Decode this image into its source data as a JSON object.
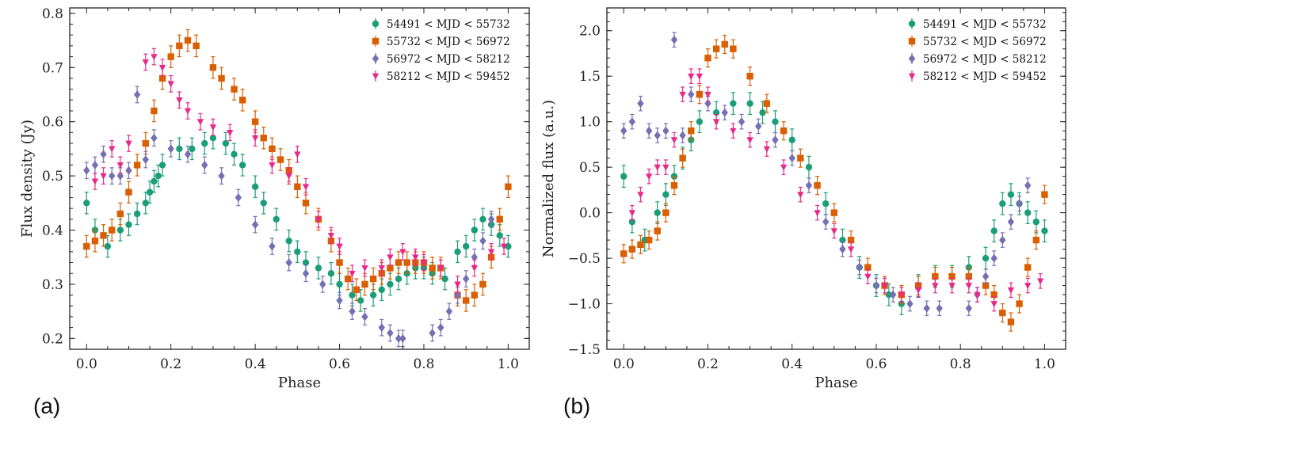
{
  "chart_data": [
    {
      "type": "scatter",
      "panel_label": "(a)",
      "xlabel": "Phase",
      "ylabel": "Flux density (Jy)",
      "xlim": [
        -0.04,
        1.05
      ],
      "ylim": [
        0.18,
        0.81
      ],
      "xticks": [
        "0.0",
        "0.2",
        "0.4",
        "0.6",
        "0.8",
        "1.0"
      ],
      "xtick_values": [
        0.0,
        0.2,
        0.4,
        0.6,
        0.8,
        1.0
      ],
      "yticks": [
        "0.2",
        "0.3",
        "0.4",
        "0.5",
        "0.6",
        "0.7",
        "0.8"
      ],
      "ytick_values": [
        0.2,
        0.3,
        0.4,
        0.5,
        0.6,
        0.7,
        0.8
      ],
      "legend_position": "top-right",
      "series": [
        {
          "name": "54491 < MJD < 55732",
          "color": "#1b9e77",
          "marker": "circle",
          "x": [
            0.0,
            0.02,
            0.05,
            0.08,
            0.1,
            0.12,
            0.14,
            0.15,
            0.16,
            0.17,
            0.18,
            0.22,
            0.25,
            0.28,
            0.3,
            0.33,
            0.35,
            0.37,
            0.4,
            0.42,
            0.45,
            0.48,
            0.5,
            0.52,
            0.55,
            0.58,
            0.6,
            0.63,
            0.65,
            0.68,
            0.7,
            0.72,
            0.74,
            0.76,
            0.78,
            0.8,
            0.82,
            0.85,
            0.88,
            0.9,
            0.92,
            0.94,
            0.96,
            0.98,
            1.0
          ],
          "y": [
            0.45,
            0.4,
            0.37,
            0.4,
            0.41,
            0.43,
            0.45,
            0.47,
            0.49,
            0.5,
            0.52,
            0.55,
            0.55,
            0.56,
            0.57,
            0.56,
            0.54,
            0.52,
            0.48,
            0.45,
            0.42,
            0.38,
            0.36,
            0.34,
            0.33,
            0.32,
            0.3,
            0.28,
            0.27,
            0.28,
            0.29,
            0.3,
            0.31,
            0.32,
            0.33,
            0.33,
            0.32,
            0.31,
            0.36,
            0.37,
            0.4,
            0.42,
            0.41,
            0.39,
            0.37
          ],
          "yerr": 0.02
        },
        {
          "name": "55732 < MJD < 56972",
          "color": "#d95f02",
          "marker": "square",
          "x": [
            0.0,
            0.02,
            0.04,
            0.06,
            0.08,
            0.1,
            0.12,
            0.14,
            0.16,
            0.18,
            0.2,
            0.22,
            0.24,
            0.26,
            0.3,
            0.32,
            0.35,
            0.37,
            0.4,
            0.42,
            0.44,
            0.46,
            0.48,
            0.5,
            0.52,
            0.55,
            0.58,
            0.6,
            0.62,
            0.64,
            0.66,
            0.68,
            0.7,
            0.72,
            0.74,
            0.76,
            0.78,
            0.8,
            0.82,
            0.84,
            0.88,
            0.9,
            0.92,
            0.94,
            0.96,
            0.98,
            1.0
          ],
          "y": [
            0.37,
            0.38,
            0.39,
            0.4,
            0.43,
            0.47,
            0.52,
            0.56,
            0.62,
            0.68,
            0.72,
            0.74,
            0.75,
            0.74,
            0.7,
            0.68,
            0.66,
            0.64,
            0.6,
            0.57,
            0.55,
            0.53,
            0.51,
            0.48,
            0.45,
            0.42,
            0.38,
            0.34,
            0.31,
            0.29,
            0.3,
            0.31,
            0.32,
            0.33,
            0.34,
            0.34,
            0.34,
            0.34,
            0.33,
            0.33,
            0.28,
            0.27,
            0.28,
            0.3,
            0.35,
            0.42,
            0.48
          ],
          "yerr": 0.02
        },
        {
          "name": "56972 < MJD < 58212",
          "color": "#7570b3",
          "marker": "diamond",
          "x": [
            0.0,
            0.02,
            0.04,
            0.06,
            0.08,
            0.1,
            0.12,
            0.14,
            0.16,
            0.2,
            0.24,
            0.28,
            0.32,
            0.36,
            0.4,
            0.44,
            0.48,
            0.52,
            0.56,
            0.6,
            0.63,
            0.66,
            0.7,
            0.72,
            0.74,
            0.75,
            0.82,
            0.84,
            0.86,
            0.88,
            0.9,
            0.92,
            0.94,
            0.96
          ],
          "y": [
            0.51,
            0.52,
            0.54,
            0.5,
            0.5,
            0.51,
            0.65,
            0.53,
            0.57,
            0.55,
            0.54,
            0.52,
            0.5,
            0.46,
            0.41,
            0.37,
            0.34,
            0.32,
            0.3,
            0.27,
            0.25,
            0.24,
            0.22,
            0.21,
            0.2,
            0.2,
            0.21,
            0.22,
            0.25,
            0.28,
            0.31,
            0.35,
            0.38,
            0.42
          ],
          "yerr": 0.015
        },
        {
          "name": "58212 < MJD < 59452",
          "color": "#e7298a",
          "marker": "triangle-down",
          "x": [
            0.02,
            0.04,
            0.06,
            0.08,
            0.1,
            0.14,
            0.16,
            0.18,
            0.2,
            0.22,
            0.24,
            0.27,
            0.3,
            0.34,
            0.4,
            0.44,
            0.48,
            0.5,
            0.52,
            0.55,
            0.58,
            0.6,
            0.63,
            0.66,
            0.7,
            0.72,
            0.75,
            0.78,
            0.8,
            0.84,
            0.88,
            0.92,
            0.96,
            0.99
          ],
          "y": [
            0.49,
            0.5,
            0.55,
            0.52,
            0.56,
            0.71,
            0.72,
            0.7,
            0.67,
            0.64,
            0.62,
            0.6,
            0.59,
            0.58,
            0.57,
            0.52,
            0.5,
            0.54,
            0.48,
            0.42,
            0.39,
            0.37,
            0.32,
            0.33,
            0.33,
            0.35,
            0.36,
            0.35,
            0.34,
            0.33,
            0.3,
            0.33,
            0.36,
            0.37
          ],
          "yerr": 0.015
        }
      ]
    },
    {
      "type": "scatter",
      "panel_label": "(b)",
      "xlabel": "Phase",
      "ylabel": "Normalized flux (a.u.)",
      "xlim": [
        -0.04,
        1.05
      ],
      "ylim": [
        -1.5,
        2.25
      ],
      "xticks": [
        "0.0",
        "0.2",
        "0.4",
        "0.6",
        "0.8",
        "1.0"
      ],
      "xtick_values": [
        0.0,
        0.2,
        0.4,
        0.6,
        0.8,
        1.0
      ],
      "yticks": [
        "−1.5",
        "−1.0",
        "−0.5",
        "0.0",
        "0.5",
        "1.0",
        "1.5",
        "2.0"
      ],
      "ytick_values": [
        -1.5,
        -1.0,
        -0.5,
        0.0,
        0.5,
        1.0,
        1.5,
        2.0
      ],
      "legend_position": "top-right",
      "series": [
        {
          "name": "54491 < MJD < 55732",
          "color": "#1b9e77",
          "marker": "circle",
          "x": [
            0.0,
            0.02,
            0.05,
            0.08,
            0.1,
            0.12,
            0.14,
            0.16,
            0.18,
            0.22,
            0.26,
            0.3,
            0.33,
            0.36,
            0.4,
            0.44,
            0.48,
            0.52,
            0.56,
            0.6,
            0.63,
            0.66,
            0.7,
            0.74,
            0.78,
            0.82,
            0.86,
            0.88,
            0.9,
            0.92,
            0.94,
            0.96,
            0.98,
            1.0
          ],
          "y": [
            0.4,
            -0.1,
            -0.3,
            0.0,
            0.2,
            0.4,
            0.6,
            0.8,
            1.0,
            1.1,
            1.2,
            1.2,
            1.1,
            1.0,
            0.8,
            0.5,
            0.1,
            -0.3,
            -0.6,
            -0.8,
            -0.9,
            -1.0,
            -0.8,
            -0.7,
            -0.7,
            -0.6,
            -0.5,
            -0.2,
            0.1,
            0.2,
            0.1,
            0.0,
            -0.1,
            -0.2
          ],
          "yerr": 0.12
        },
        {
          "name": "55732 < MJD < 56972",
          "color": "#d95f02",
          "marker": "square",
          "x": [
            0.0,
            0.02,
            0.04,
            0.06,
            0.08,
            0.1,
            0.12,
            0.14,
            0.16,
            0.18,
            0.2,
            0.22,
            0.24,
            0.26,
            0.3,
            0.34,
            0.38,
            0.42,
            0.46,
            0.5,
            0.54,
            0.58,
            0.62,
            0.66,
            0.7,
            0.74,
            0.78,
            0.82,
            0.86,
            0.88,
            0.9,
            0.92,
            0.94,
            0.96,
            0.98,
            1.0
          ],
          "y": [
            -0.45,
            -0.4,
            -0.35,
            -0.3,
            -0.2,
            0.0,
            0.3,
            0.6,
            0.9,
            1.3,
            1.7,
            1.8,
            1.85,
            1.8,
            1.5,
            1.2,
            0.9,
            0.6,
            0.3,
            0.0,
            -0.3,
            -0.6,
            -0.8,
            -0.9,
            -0.8,
            -0.7,
            -0.7,
            -0.7,
            -0.8,
            -0.9,
            -1.1,
            -1.2,
            -1.0,
            -0.6,
            -0.3,
            0.2
          ],
          "yerr": 0.1
        },
        {
          "name": "56972 < MJD < 58212",
          "color": "#7570b3",
          "marker": "diamond",
          "x": [
            0.0,
            0.02,
            0.04,
            0.06,
            0.08,
            0.1,
            0.12,
            0.14,
            0.16,
            0.2,
            0.24,
            0.28,
            0.32,
            0.36,
            0.4,
            0.44,
            0.48,
            0.52,
            0.56,
            0.6,
            0.64,
            0.68,
            0.72,
            0.75,
            0.82,
            0.84,
            0.86,
            0.88,
            0.9,
            0.92,
            0.94,
            0.96
          ],
          "y": [
            0.9,
            1.0,
            1.2,
            0.9,
            0.85,
            0.9,
            1.9,
            0.85,
            1.3,
            1.2,
            1.1,
            1.0,
            0.95,
            0.8,
            0.6,
            0.3,
            -0.1,
            -0.4,
            -0.6,
            -0.8,
            -0.9,
            -1.0,
            -1.05,
            -1.05,
            -1.05,
            -0.9,
            -0.7,
            -0.5,
            -0.3,
            -0.1,
            0.1,
            0.3
          ],
          "yerr": 0.08
        },
        {
          "name": "58212 < MJD < 59452",
          "color": "#e7298a",
          "marker": "triangle-down",
          "x": [
            0.02,
            0.04,
            0.06,
            0.08,
            0.1,
            0.12,
            0.14,
            0.16,
            0.18,
            0.2,
            0.22,
            0.26,
            0.3,
            0.34,
            0.38,
            0.42,
            0.46,
            0.5,
            0.54,
            0.58,
            0.62,
            0.66,
            0.7,
            0.74,
            0.78,
            0.82,
            0.84,
            0.88,
            0.92,
            0.96,
            0.99
          ],
          "y": [
            0.0,
            0.2,
            0.4,
            0.5,
            0.5,
            0.8,
            1.3,
            1.5,
            1.5,
            1.3,
            1.0,
            0.9,
            0.8,
            0.7,
            0.5,
            0.2,
            0.0,
            -0.2,
            -0.4,
            -0.7,
            -0.8,
            -0.9,
            -0.85,
            -0.8,
            -0.8,
            -0.8,
            -0.9,
            -1.0,
            -0.85,
            -0.8,
            -0.75
          ],
          "yerr": 0.08
        }
      ]
    }
  ]
}
